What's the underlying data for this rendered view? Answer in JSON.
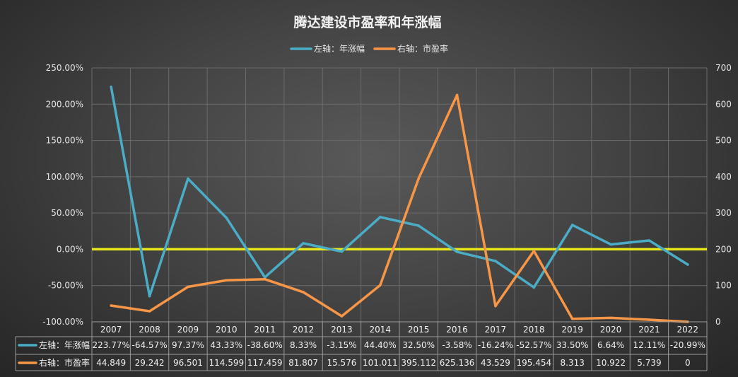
{
  "chart_data": {
    "type": "line",
    "title": "腾达建设市盈率和年涨幅",
    "categories": [
      "2007",
      "2008",
      "2009",
      "2010",
      "2011",
      "2012",
      "2013",
      "2014",
      "2015",
      "2016",
      "2017",
      "2018",
      "2019",
      "2020",
      "2021",
      "2022"
    ],
    "series": [
      {
        "name": "左轴：年涨幅",
        "axis": "left",
        "color": "#4bacc6",
        "values": [
          223.77,
          -64.57,
          97.37,
          43.33,
          -38.6,
          8.33,
          -3.15,
          44.4,
          32.5,
          -3.58,
          -16.24,
          -52.57,
          33.5,
          6.64,
          12.11,
          -20.99
        ],
        "labels": [
          "223.77%",
          "-64.57%",
          "97.37%",
          "43.33%",
          "-38.60%",
          "8.33%",
          "-3.15%",
          "44.40%",
          "32.50%",
          "-3.58%",
          "-16.24%",
          "-52.57%",
          "33.50%",
          "6.64%",
          "12.11%",
          "-20.99%"
        ]
      },
      {
        "name": "右轴：市盈率",
        "axis": "right",
        "color": "#f79646",
        "values": [
          44.849,
          29.242,
          96.501,
          114.599,
          117.459,
          81.807,
          15.576,
          101.011,
          395.112,
          625.136,
          43.529,
          195.454,
          8.313,
          10.922,
          5.739,
          0
        ],
        "labels": [
          "44.849",
          "29.242",
          "96.501",
          "114.599",
          "117.459",
          "81.807",
          "15.576",
          "101.011",
          "395.112",
          "625.136",
          "43.529",
          "195.454",
          "8.313",
          "10.922",
          "5.739",
          "0"
        ]
      }
    ],
    "left_axis": {
      "ylim": [
        -100,
        250
      ],
      "ticks": [
        250,
        200,
        150,
        100,
        50,
        0,
        -50,
        -100
      ],
      "tick_labels": [
        "250.00%",
        "200.00%",
        "150.00%",
        "100.00%",
        "50.00%",
        "0.00%",
        "-50.00%",
        "-100.00%"
      ]
    },
    "right_axis": {
      "ylim": [
        0,
        700
      ],
      "ticks": [
        700,
        600,
        500,
        400,
        300,
        200,
        100,
        0
      ],
      "tick_labels": [
        "700",
        "600",
        "500",
        "400",
        "300",
        "200",
        "100",
        "0"
      ]
    },
    "reference_line": {
      "axis": "left",
      "value": 0,
      "color": "#e6e619"
    },
    "legend_position": "top",
    "data_table": true,
    "grid": true
  }
}
